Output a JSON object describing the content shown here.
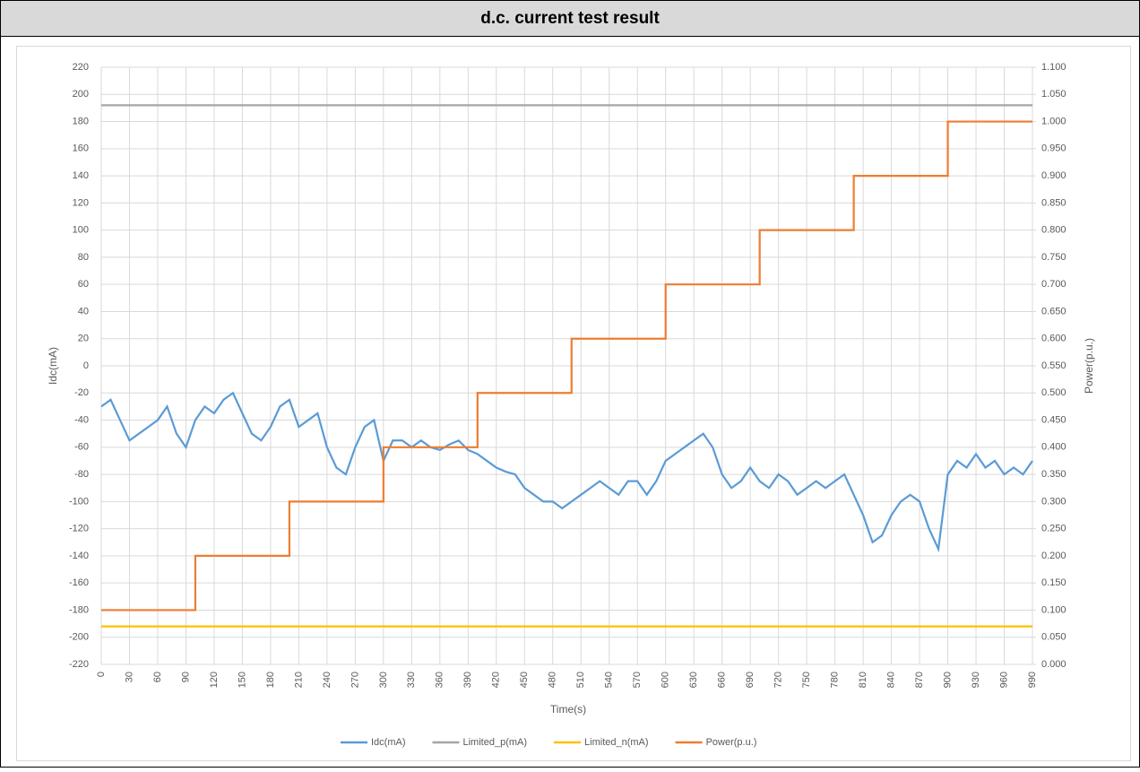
{
  "chart_data": {
    "type": "line",
    "title": "d.c. current test result",
    "xlabel": "Time(s)",
    "ylabel": "Idc(mA)",
    "y2label": "Power(p.u.)",
    "xlim": [
      0,
      990
    ],
    "xticks": [
      0,
      30,
      60,
      90,
      120,
      150,
      180,
      210,
      240,
      270,
      300,
      330,
      360,
      390,
      420,
      450,
      480,
      510,
      540,
      570,
      600,
      630,
      660,
      690,
      720,
      750,
      780,
      810,
      840,
      870,
      900,
      930,
      960,
      990
    ],
    "ylim": [
      -220,
      220
    ],
    "yticks": [
      -220,
      -200,
      -180,
      -160,
      -140,
      -120,
      -100,
      -80,
      -60,
      -40,
      -20,
      0,
      20,
      40,
      60,
      80,
      100,
      120,
      140,
      160,
      180,
      200,
      220
    ],
    "y2lim": [
      0,
      1.1
    ],
    "y2ticks": [
      {
        "value": 0,
        "label": "0.000"
      },
      {
        "value": 0.05,
        "label": "0.050"
      },
      {
        "value": 0.1,
        "label": "0.100"
      },
      {
        "value": 0.15,
        "label": "0.150"
      },
      {
        "value": 0.2,
        "label": "0.200"
      },
      {
        "value": 0.25,
        "label": "0.250"
      },
      {
        "value": 0.3,
        "label": "0.300"
      },
      {
        "value": 0.35,
        "label": "0.350"
      },
      {
        "value": 0.4,
        "label": "0.400"
      },
      {
        "value": 0.45,
        "label": "0.450"
      },
      {
        "value": 0.5,
        "label": "0.500"
      },
      {
        "value": 0.55,
        "label": "0.550"
      },
      {
        "value": 0.6,
        "label": "0.600"
      },
      {
        "value": 0.65,
        "label": "0.650"
      },
      {
        "value": 0.7,
        "label": "0.700"
      },
      {
        "value": 0.75,
        "label": "0.750"
      },
      {
        "value": 0.8,
        "label": "0.800"
      },
      {
        "value": 0.85,
        "label": "0.850"
      },
      {
        "value": 0.9,
        "label": "0.900"
      },
      {
        "value": 0.95,
        "label": "0.950"
      },
      {
        "value": 1.0,
        "label": "1.000"
      },
      {
        "value": 1.05,
        "label": "1.050"
      },
      {
        "value": 1.1,
        "label": "1.100"
      }
    ],
    "grid": true,
    "legend": "bottom",
    "series": [
      {
        "name": "Idc(mA)",
        "color": "#5b9bd5",
        "x": [
          0,
          10,
          20,
          30,
          40,
          50,
          60,
          70,
          80,
          90,
          100,
          110,
          120,
          130,
          140,
          150,
          160,
          170,
          180,
          190,
          200,
          210,
          220,
          230,
          240,
          250,
          260,
          270,
          280,
          290,
          300,
          310,
          320,
          330,
          340,
          350,
          360,
          370,
          380,
          390,
          400,
          410,
          420,
          430,
          440,
          450,
          460,
          470,
          480,
          490,
          500,
          510,
          520,
          530,
          540,
          550,
          560,
          570,
          580,
          590,
          600,
          610,
          620,
          630,
          640,
          650,
          660,
          670,
          680,
          690,
          700,
          710,
          720,
          730,
          740,
          750,
          760,
          770,
          780,
          790,
          800,
          810,
          820,
          830,
          840,
          850,
          860,
          870,
          880,
          890,
          900,
          910,
          920,
          930,
          940,
          950,
          960,
          970,
          980,
          990
        ],
        "values": [
          -30,
          -25,
          -40,
          -55,
          -50,
          -45,
          -40,
          -30,
          -50,
          -60,
          -40,
          -30,
          -35,
          -25,
          -20,
          -35,
          -50,
          -55,
          -45,
          -30,
          -25,
          -45,
          -40,
          -35,
          -60,
          -75,
          -80,
          -60,
          -45,
          -40,
          -70,
          -55,
          -55,
          -60,
          -55,
          -60,
          -62,
          -58,
          -55,
          -62,
          -65,
          -70,
          -75,
          -78,
          -80,
          -90,
          -95,
          -100,
          -100,
          -105,
          -100,
          -95,
          -90,
          -85,
          -90,
          -95,
          -85,
          -85,
          -95,
          -85,
          -70,
          -65,
          -60,
          -55,
          -50,
          -60,
          -80,
          -90,
          -85,
          -75,
          -85,
          -90,
          -80,
          -85,
          -95,
          -90,
          -85,
          -90,
          -85,
          -80,
          -95,
          -110,
          -130,
          -125,
          -110,
          -100,
          -95,
          -100,
          -120,
          -135,
          -80,
          -70,
          -75,
          -65,
          -75,
          -70,
          -80,
          -75,
          -80,
          -70
        ]
      },
      {
        "name": "Limited_p(mA)",
        "color": "#a5a5a5",
        "x": [
          0,
          990
        ],
        "values": [
          192,
          192
        ]
      },
      {
        "name": "Limited_n(mA)",
        "color": "#ffc000",
        "x": [
          0,
          990
        ],
        "values": [
          -192,
          -192
        ]
      },
      {
        "name": "Power(p.u.)",
        "color": "#ed7d31",
        "axis": "y2",
        "x": [
          0,
          100,
          100,
          200,
          200,
          300,
          300,
          400,
          400,
          500,
          500,
          600,
          600,
          700,
          700,
          800,
          800,
          900,
          900,
          990
        ],
        "values": [
          0.1,
          0.1,
          0.2,
          0.2,
          0.3,
          0.3,
          0.4,
          0.4,
          0.5,
          0.5,
          0.6,
          0.6,
          0.7,
          0.7,
          0.8,
          0.8,
          0.9,
          0.9,
          1.0,
          1.0
        ]
      }
    ]
  }
}
